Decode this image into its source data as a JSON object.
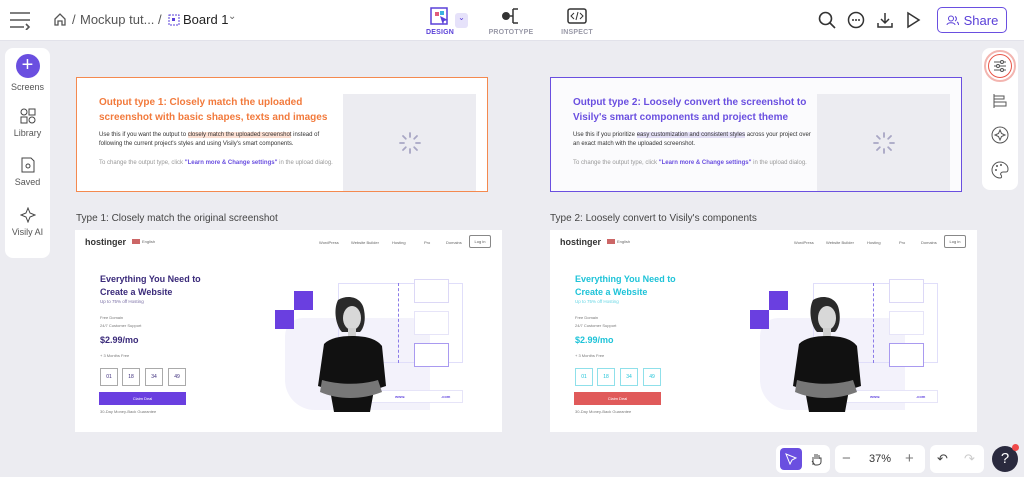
{
  "topbar": {
    "breadcrumb": [
      "Mockup tut...",
      "Board 1"
    ],
    "modes": [
      "DESIGN",
      "PROTOTYPE",
      "INSPECT"
    ],
    "active_mode": "DESIGN",
    "share_label": "Share",
    "icons": [
      "menu-icon",
      "home-icon",
      "board-icon",
      "search-icon",
      "comment-icon",
      "download-icon",
      "play-icon",
      "share-users-icon"
    ]
  },
  "sidebar": {
    "items": [
      {
        "label": "Screens",
        "icon": "plus-icon"
      },
      {
        "label": "Library",
        "icon": "library-icon"
      },
      {
        "label": "Saved",
        "icon": "saved-icon"
      },
      {
        "label": "Visily AI",
        "icon": "sparkle-icon"
      }
    ]
  },
  "right_panel": {
    "icons": [
      "settings-sliders-icon",
      "layers-icon",
      "theme-icon",
      "palette-icon"
    ]
  },
  "cards": [
    {
      "title": "Output type 1: Closely match the uploaded screenshot with basic shapes, texts and images",
      "body_before": "Use this if you want the output to ",
      "highlight": "closely match the uploaded screenshot",
      "body_after": " instead of following the current project's styles and using Visily's smart components.",
      "note_before": "To change the output type, click ",
      "note_link": "\"Learn more & Change settings\"",
      "note_after": " in the upload dialog.",
      "accent": "#f27a3c"
    },
    {
      "title": "Output type 2: Loosely convert the screenshot to Visily's smart components and project theme",
      "body_before": "Use this if you prioritize ",
      "highlight": "easy customization and consistent styles",
      "body_after": " across your project over an exact match with the uploaded screenshot.",
      "note_before": "To change the output type, click ",
      "note_link": "\"Learn more & Change settings\"",
      "note_after": " in the upload dialog.",
      "accent": "#6a4fe0"
    }
  ],
  "screens": [
    {
      "caption": "Type 1: Closely match the original screenshot",
      "logo": "hostinger",
      "lang": "English",
      "nav": [
        "WordPress",
        "Website Builder",
        "Hosting",
        "Pro",
        "Domains"
      ],
      "login": "Log in",
      "headline1": "Everything You Need to",
      "headline2": "Create a Website",
      "sub": "Up to 75% off Hosting",
      "feat1": "Free Domain",
      "feat2": "24/7 Customer Support",
      "price": "$2.99/mo",
      "bonus": "+ 3 Months Free",
      "timer": [
        "01",
        "18",
        "34",
        "49"
      ],
      "cta": "Claim Deal",
      "guarantee": "30-Day Money-Back Guarantee",
      "url_left": "www.",
      "url_right": ".com",
      "head_color": "#3a2a7a",
      "cta_color": "#6a3fe0"
    },
    {
      "caption": "Type 2: Loosely convert to Visily's components",
      "logo": "hostinger",
      "lang": "English",
      "nav": [
        "WordPress",
        "Website Builder",
        "Hosting",
        "Pro",
        "Domains"
      ],
      "login": "Log in",
      "headline1": "Everything You Need to",
      "headline2": "Create a Website",
      "sub": "Up to 75% off Hosting",
      "feat1": "Free Domain",
      "feat2": "24/7 Customer Support",
      "price": "$2.99/mo",
      "bonus": "+ 3 Months Free",
      "timer": [
        "01",
        "18",
        "34",
        "49"
      ],
      "cta": "Claim Deal",
      "guarantee": "30-Day Money-Back Guarantee",
      "url_left": "www.",
      "url_right": ".com",
      "head_color": "#1ec3d8",
      "cta_color": "#e05a5a"
    }
  ],
  "toolbar": {
    "zoom": "37%",
    "icons": [
      "pointer-icon",
      "hand-icon",
      "zoom-out-icon",
      "zoom-in-icon",
      "undo-icon",
      "redo-icon",
      "help-icon"
    ]
  }
}
